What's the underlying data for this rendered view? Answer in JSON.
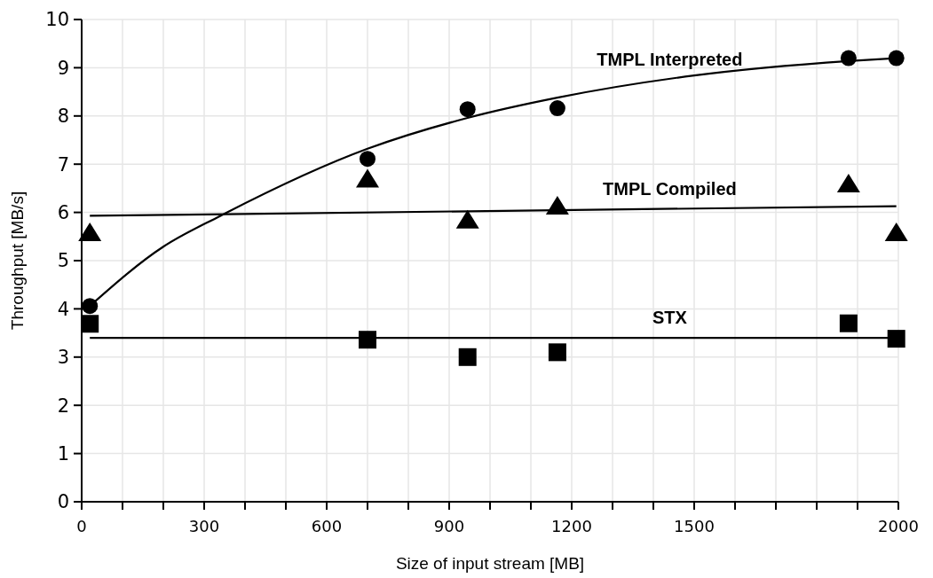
{
  "chart_data": {
    "type": "scatter",
    "xlabel": "Size of input stream [MB]",
    "ylabel": "Throughput [MB/s]",
    "xlim": [
      0,
      2000
    ],
    "ylim": [
      0,
      10
    ],
    "xticks": [
      0,
      {
        "value": 100,
        "label": null
      },
      {
        "value": 200,
        "label": null
      },
      300,
      {
        "value": 400,
        "label": null
      },
      {
        "value": 500,
        "label": null
      },
      600,
      {
        "value": 700,
        "label": null
      },
      {
        "value": 800,
        "label": null
      },
      900,
      {
        "value": 1000,
        "label": null
      },
      {
        "value": 1100,
        "label": null
      },
      1200,
      {
        "value": 1300,
        "label": null
      },
      {
        "value": 1400,
        "label": null
      },
      1500,
      {
        "value": 1600,
        "label": null
      },
      {
        "value": 1700,
        "label": null
      },
      {
        "value": 1800,
        "label": null
      },
      {
        "value": 1900,
        "label": null
      },
      2000
    ],
    "yticks": [
      0,
      1,
      2,
      3,
      4,
      5,
      6,
      7,
      8,
      9,
      10
    ],
    "grid": true,
    "series": [
      {
        "color": "#000000",
        "marker": "circle",
        "x": [
          20,
          700,
          945,
          1165,
          1878,
          1995
        ],
        "values": [
          4.06,
          7.11,
          8.14,
          8.16,
          9.2,
          9.2
        ]
      },
      {
        "color": "#000000",
        "marker": "triangle",
        "x": [
          20,
          700,
          945,
          1165,
          1878,
          1995
        ],
        "values": [
          5.59,
          6.7,
          5.85,
          6.14,
          6.6,
          5.59
        ]
      },
      {
        "color": "#000000",
        "marker": "square",
        "x": [
          20,
          700,
          945,
          1165,
          1878,
          1995
        ],
        "values": [
          3.69,
          3.36,
          3.0,
          3.1,
          3.7,
          3.38
        ]
      },
      {
        "name": "TMPL Interpreted",
        "type": "line",
        "color": "#000000",
        "marker": "none",
        "x": [
          20,
          200,
          340,
          700,
          945,
          1165,
          1500,
          1878,
          1995
        ],
        "values": [
          4.06,
          5.29,
          5.93,
          7.32,
          7.96,
          8.38,
          8.84,
          9.14,
          9.2
        ]
      },
      {
        "name": "TMPL Compiled",
        "type": "line",
        "color": "#000000",
        "marker": "none",
        "x": [
          20,
          1995
        ],
        "values": [
          5.93,
          6.13
        ]
      },
      {
        "name": "STX",
        "type": "line",
        "color": "#000000",
        "marker": "none",
        "x": [
          20,
          1995
        ],
        "values": [
          3.4,
          3.4
        ]
      }
    ]
  }
}
